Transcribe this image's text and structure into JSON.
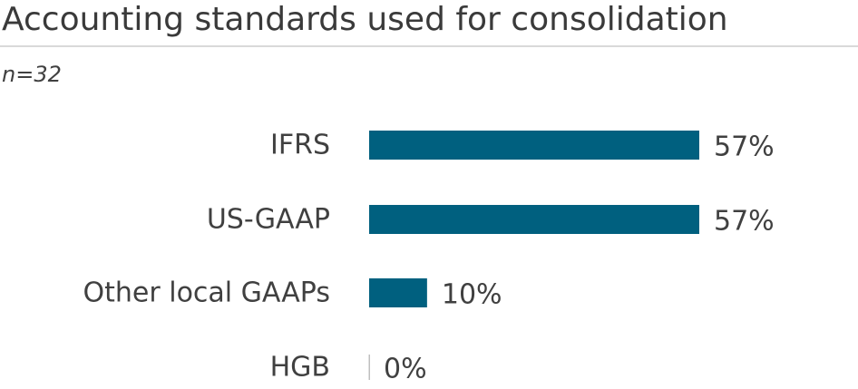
{
  "chart_data": {
    "type": "bar",
    "orientation": "horizontal",
    "title": "Accounting standards used for consolidation",
    "subtitle": "n=32",
    "categories": [
      "IFRS",
      "US-GAAP",
      "Other local GAAPs",
      "HGB"
    ],
    "values": [
      57,
      57,
      10,
      0
    ],
    "value_labels": [
      "57%",
      "57%",
      "10%",
      "0%"
    ],
    "xlim": [
      0,
      57
    ],
    "grid": false,
    "legend": "none",
    "bar_color": "#00607f",
    "zero_line_color": "#bfbfbf"
  }
}
